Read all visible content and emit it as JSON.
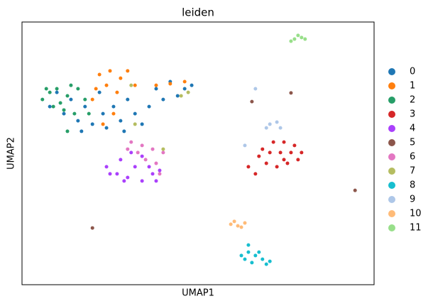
{
  "chart_data": {
    "type": "scatter",
    "title": "leiden",
    "x_label": "UMAP1",
    "y_label": "UMAP2",
    "xlim": [
      0,
      100
    ],
    "ylim": [
      0,
      100
    ],
    "legend": "outside-right",
    "series": [
      {
        "name": "0",
        "color": "#1f77b4",
        "x": [
          7.9,
          11.9,
          15.9,
          20.0,
          24.0,
          28.0,
          32.1,
          36.1,
          40.1,
          44.2,
          48.2,
          42.1,
          17.9,
          13.9,
          26.0,
          34.1,
          22.0,
          30.0,
          38.1,
          46.2,
          9.9,
          16.9,
          29.0,
          23.0
        ],
        "values": [
          67.8,
          65.1,
          62.4,
          61.1,
          59.7,
          62.4,
          65.1,
          67.8,
          70.5,
          71.9,
          75.9,
          77.3,
          67.8,
          70.5,
          67.8,
          61.1,
          73.2,
          70.5,
          74.6,
          74.6,
          73.2,
          58.4,
          58.4,
          65.1
        ]
      },
      {
        "name": "1",
        "color": "#ff7f0e",
        "x": [
          22.0,
          25.0,
          28.0,
          24.0,
          27.0,
          30.0,
          20.0,
          26.0,
          23.0,
          38.1,
          42.1,
          46.2,
          32.1,
          21.0
        ],
        "values": [
          80.0,
          81.4,
          78.6,
          75.9,
          73.2,
          81.4,
          70.5,
          65.1,
          61.1,
          75.9,
          76.5,
          77.3,
          75.9,
          74.6
        ]
      },
      {
        "name": "2",
        "color": "#279e68",
        "x": [
          5.8,
          7.9,
          9.9,
          12.9,
          15.9,
          17.9,
          8.9,
          11.9,
          14.9,
          6.9,
          13.9,
          10.9,
          19.0,
          12.9
        ],
        "values": [
          70.5,
          73.2,
          74.6,
          71.9,
          74.6,
          70.5,
          67.8,
          66.5,
          65.1,
          74.6,
          75.9,
          69.2,
          65.1,
          58.4
        ]
      },
      {
        "name": "3",
        "color": "#d62728",
        "x": [
          68.3,
          71.4,
          74.4,
          77.4,
          79.4,
          78.4,
          75.4,
          72.4,
          69.4,
          67.3,
          73.4,
          70.4,
          76.4,
          66.3,
          64.3,
          74.4
        ],
        "values": [
          51.6,
          54.3,
          54.3,
          53.0,
          50.3,
          47.6,
          46.2,
          44.9,
          46.2,
          48.9,
          50.3,
          50.3,
          50.3,
          42.2,
          44.9,
          47.6
        ]
      },
      {
        "name": "4",
        "color": "#aa40fc",
        "x": [
          24.0,
          27.0,
          30.0,
          34.1,
          38.1,
          39.1,
          36.1,
          32.1,
          28.0,
          25.0,
          31.0,
          34.1,
          29.0,
          37.1
        ],
        "values": [
          44.9,
          42.2,
          40.8,
          39.5,
          39.5,
          43.5,
          44.9,
          44.9,
          47.6,
          42.2,
          50.3,
          48.9,
          39.5,
          42.2
        ]
      },
      {
        "name": "5",
        "color": "#8c564b",
        "x": [
          20.0,
          94.6,
          65.3,
          76.4
        ],
        "values": [
          21.6,
          35.9,
          69.7,
          73.0
        ]
      },
      {
        "name": "6",
        "color": "#e377c2",
        "x": [
          31.0,
          34.1,
          37.1,
          40.1,
          38.1,
          35.1,
          32.9,
          39.1,
          30.0
        ],
        "values": [
          54.3,
          53.0,
          51.6,
          50.3,
          46.2,
          47.6,
          50.3,
          42.2,
          51.6
        ]
      },
      {
        "name": "7",
        "color": "#b5bd61",
        "x": [
          31.0,
          45.2,
          32.1,
          40.1,
          47.2
        ],
        "values": [
          75.9,
          71.9,
          61.1,
          51.6,
          73.2
        ]
      },
      {
        "name": "8",
        "color": "#17becf",
        "x": [
          62.3,
          64.3,
          66.3,
          68.3,
          70.4,
          65.3,
          63.3,
          67.3,
          69.4,
          64.3
        ],
        "values": [
          11.1,
          12.4,
          11.1,
          9.7,
          8.9,
          8.4,
          9.7,
          12.4,
          7.8,
          15.1
        ]
      },
      {
        "name": "9",
        "color": "#aec7e8",
        "x": [
          70.4,
          72.4,
          73.4,
          69.4,
          63.3,
          66.3
        ],
        "values": [
          61.1,
          61.9,
          59.7,
          59.7,
          53.0,
          74.6
        ]
      },
      {
        "name": "10",
        "color": "#ffbb78",
        "x": [
          59.3,
          61.3,
          63.3,
          60.3,
          62.3
        ],
        "values": [
          23.0,
          22.4,
          23.5,
          24.1,
          21.9
        ]
      },
      {
        "name": "11",
        "color": "#98df8a",
        "x": [
          77.4,
          79.4,
          76.4,
          80.4,
          78.4
        ],
        "values": [
          93.5,
          94.1,
          92.7,
          93.5,
          94.9
        ]
      }
    ]
  }
}
